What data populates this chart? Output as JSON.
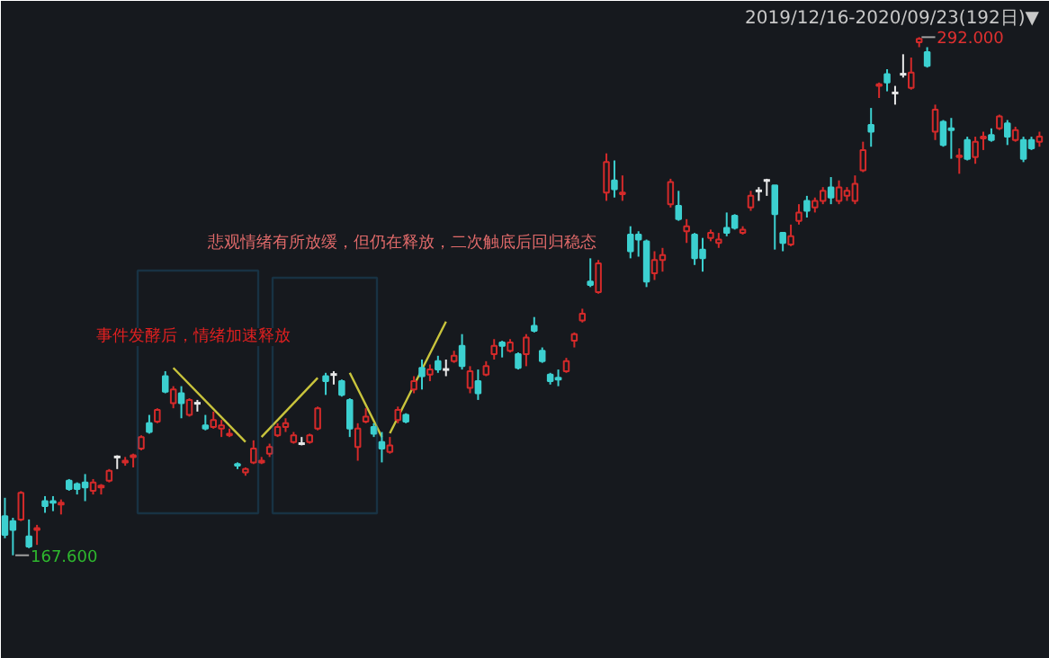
{
  "chart_data": {
    "type": "candlestick",
    "title": "2019/12/16-2020/09/23(192日)▼",
    "annotations": [
      "悲观情绪有所放缓，但仍在释放，二次触底后回归稳态",
      "事件发酵后，情绪加速释放",
      "292.000",
      "167.600"
    ],
    "categories": [
      null,
      null,
      null,
      null,
      null,
      null,
      null,
      null,
      null,
      null,
      null,
      null,
      null,
      null,
      null,
      null,
      null,
      null,
      null,
      null,
      null,
      null,
      null,
      null,
      null,
      null,
      null,
      null,
      null,
      null,
      null,
      null,
      null,
      null,
      null,
      null,
      null,
      null,
      null,
      null,
      null,
      null,
      null,
      null,
      null,
      null,
      null,
      null,
      null,
      null,
      null,
      null,
      null,
      null,
      null,
      null,
      null,
      null,
      null,
      null,
      null,
      null,
      null,
      null,
      null,
      null,
      null,
      null,
      null,
      null,
      null,
      null,
      null,
      null,
      null,
      null,
      null,
      null,
      null,
      null,
      null,
      null,
      null,
      null,
      null,
      null,
      null,
      null,
      null,
      null,
      null,
      null,
      null,
      null,
      null,
      null,
      null,
      null,
      null,
      null,
      null,
      null,
      null,
      null,
      null,
      null,
      null,
      null,
      null,
      null,
      null,
      null,
      null,
      null,
      null,
      null,
      null,
      null,
      null,
      null,
      null,
      null,
      null,
      null,
      null,
      null,
      null,
      null,
      null,
      null
    ],
    "ohlc": [
      [
        177.0,
        181.4,
        171.7,
        172.5
      ],
      [
        175.8,
        176.6,
        167.6,
        173.7
      ],
      [
        176.2,
        183.0,
        175.8,
        182.6
      ],
      [
        172.1,
        176.2,
        169.3,
        169.7
      ],
      [
        173.7,
        174.9,
        170.1,
        174.1
      ],
      [
        180.6,
        181.8,
        177.8,
        179.4
      ],
      [
        180.6,
        181.8,
        178.2,
        180.2
      ],
      [
        179.8,
        181.0,
        177.4,
        180.2
      ],
      [
        185.5,
        185.9,
        183.1,
        183.5
      ],
      [
        184.7,
        185.1,
        182.2,
        183.5
      ],
      [
        185.1,
        187.1,
        180.6,
        183.9
      ],
      [
        183.1,
        185.9,
        182.2,
        185.1
      ],
      [
        183.9,
        184.7,
        182.2,
        184.3
      ],
      [
        185.5,
        188.3,
        185.1,
        187.9
      ],
      [
        191.2,
        191.6,
        188.3,
        191.2
      ],
      [
        189.9,
        191.2,
        189.1,
        190.3
      ],
      [
        191.2,
        192.0,
        188.7,
        191.6
      ],
      [
        193.2,
        196.4,
        192.8,
        196.0
      ],
      [
        199.3,
        201.3,
        196.8,
        197.2
      ],
      [
        199.7,
        202.9,
        199.3,
        202.5
      ],
      [
        210.6,
        211.8,
        206.5,
        206.9
      ],
      [
        204.1,
        208.2,
        202.9,
        207.4
      ],
      [
        206.5,
        208.2,
        200.5,
        204.1
      ],
      [
        201.3,
        205.3,
        200.9,
        204.9
      ],
      [
        204.1,
        204.9,
        202.1,
        204.1
      ],
      [
        198.8,
        201.3,
        197.6,
        198.0
      ],
      [
        198.4,
        202.1,
        198.0,
        200.1
      ],
      [
        198.0,
        200.1,
        196.0,
        198.8
      ],
      [
        196.4,
        198.0,
        196.0,
        196.8
      ],
      [
        189.5,
        189.9,
        188.3,
        189.1
      ],
      [
        187.5,
        188.7,
        186.7,
        188.3
      ],
      [
        189.9,
        195.2,
        189.5,
        193.2
      ],
      [
        189.9,
        191.2,
        189.5,
        190.3
      ],
      [
        192.0,
        194.4,
        191.2,
        193.6
      ],
      [
        196.4,
        199.3,
        196.0,
        198.4
      ],
      [
        198.4,
        200.5,
        197.2,
        199.3
      ],
      [
        194.8,
        197.2,
        194.4,
        196.4
      ],
      [
        194.4,
        196.0,
        194.0,
        194.4
      ],
      [
        194.8,
        196.8,
        194.4,
        196.4
      ],
      [
        198.0,
        203.3,
        197.6,
        202.9
      ],
      [
        210.6,
        211.4,
        206.1,
        209.4
      ],
      [
        211.0,
        211.8,
        208.6,
        211.0
      ],
      [
        209.4,
        209.8,
        205.7,
        206.1
      ],
      [
        204.9,
        205.3,
        196.0,
        198.0
      ],
      [
        193.6,
        199.3,
        190.3,
        198.0
      ],
      [
        199.7,
        202.9,
        199.3,
        200.9
      ],
      [
        198.4,
        199.3,
        196.0,
        196.8
      ],
      [
        194.8,
        197.2,
        189.9,
        193.2
      ],
      [
        192.4,
        196.0,
        192.0,
        194.0
      ],
      [
        200.1,
        203.3,
        199.3,
        202.5
      ],
      [
        201.3,
        201.7,
        199.3,
        199.7
      ],
      [
        207.4,
        210.6,
        206.5,
        209.4
      ],
      [
        212.6,
        214.6,
        207.4,
        210.6
      ],
      [
        211.0,
        213.4,
        209.4,
        212.2
      ],
      [
        214.2,
        215.5,
        211.4,
        212.2
      ],
      [
        212.2,
        214.6,
        210.6,
        212.2
      ],
      [
        214.2,
        216.7,
        213.8,
        215.5
      ],
      [
        217.9,
        220.7,
        212.2,
        213.0
      ],
      [
        207.8,
        213.0,
        206.5,
        211.8
      ],
      [
        209.4,
        212.2,
        204.9,
        206.5
      ],
      [
        211.0,
        214.2,
        210.6,
        213.0
      ],
      [
        215.9,
        219.5,
        214.6,
        217.9
      ],
      [
        218.7,
        219.1,
        215.1,
        217.9
      ],
      [
        216.7,
        219.5,
        216.3,
        218.7
      ],
      [
        215.9,
        216.3,
        212.2,
        212.6
      ],
      [
        215.9,
        220.7,
        213.0,
        219.9
      ],
      [
        222.7,
        224.8,
        221.1,
        221.5
      ],
      [
        216.7,
        217.5,
        213.8,
        214.2
      ],
      [
        211.0,
        211.4,
        208.6,
        209.4
      ],
      [
        210.2,
        212.2,
        208.2,
        209.8
      ],
      [
        211.8,
        215.0,
        211.4,
        214.2
      ],
      [
        219.1,
        221.1,
        217.5,
        220.7
      ],
      [
        224.0,
        226.8,
        223.5,
        225.6
      ],
      [
        233.3,
        238.9,
        232.0,
        232.5
      ],
      [
        230.8,
        238.5,
        230.4,
        237.7
      ],
      [
        254.7,
        264.1,
        252.7,
        262.0
      ],
      [
        257.6,
        262.4,
        253.5,
        255.5
      ],
      [
        254.3,
        258.8,
        252.7,
        254.7
      ],
      [
        244.6,
        246.6,
        238.9,
        240.6
      ],
      [
        244.6,
        245.4,
        239.3,
        243.4
      ],
      [
        243.0,
        243.4,
        232.0,
        233.3
      ],
      [
        235.3,
        240.6,
        233.7,
        238.5
      ],
      [
        238.5,
        241.4,
        235.7,
        239.7
      ],
      [
        251.9,
        258.0,
        251.1,
        257.2
      ],
      [
        251.5,
        255.1,
        247.9,
        248.3
      ],
      [
        245.4,
        248.3,
        242.6,
        246.6
      ],
      [
        244.6,
        245.0,
        237.3,
        238.9
      ],
      [
        241.0,
        243.8,
        235.7,
        238.9
      ],
      [
        243.8,
        245.8,
        243.0,
        245.0
      ],
      [
        242.6,
        245.0,
        241.4,
        243.4
      ],
      [
        246.2,
        249.9,
        244.2,
        245.0
      ],
      [
        249.1,
        249.5,
        245.8,
        246.2
      ],
      [
        245.0,
        246.6,
        244.6,
        245.8
      ],
      [
        251.1,
        255.1,
        250.3,
        253.9
      ],
      [
        255.1,
        256.0,
        252.7,
        255.1
      ],
      [
        257.6,
        258.0,
        253.9,
        257.6
      ],
      [
        256.4,
        256.4,
        241.0,
        249.5
      ],
      [
        245.0,
        245.0,
        240.6,
        242.6
      ],
      [
        242.2,
        247.0,
        241.8,
        244.2
      ],
      [
        247.9,
        251.9,
        247.0,
        249.9
      ],
      [
        252.7,
        253.9,
        248.7,
        250.3
      ],
      [
        251.1,
        253.5,
        249.9,
        252.7
      ],
      [
        252.7,
        256.0,
        251.9,
        255.1
      ],
      [
        255.9,
        258.4,
        251.9,
        253.5
      ],
      [
        252.7,
        257.6,
        251.9,
        255.9
      ],
      [
        253.9,
        256.0,
        252.7,
        255.1
      ],
      [
        252.7,
        258.8,
        251.9,
        256.8
      ],
      [
        260.0,
        266.9,
        259.6,
        264.9
      ],
      [
        270.9,
        275.0,
        265.7,
        269.3
      ],
      [
        280.3,
        281.1,
        277.4,
        280.7
      ],
      [
        283.1,
        284.3,
        279.0,
        281.1
      ],
      [
        278.6,
        280.3,
        275.8,
        278.6
      ],
      [
        283.1,
        287.9,
        282.3,
        283.1
      ],
      [
        279.8,
        287.1,
        279.4,
        283.5
      ],
      [
        290.8,
        292.0,
        289.6,
        291.6
      ],
      [
        288.4,
        289.6,
        284.7,
        285.1
      ],
      [
        269.3,
        275.8,
        267.3,
        274.6
      ],
      [
        271.7,
        272.1,
        265.7,
        266.1
      ],
      [
        270.1,
        272.6,
        262.8,
        269.7
      ],
      [
        263.2,
        265.3,
        259.2,
        263.6
      ],
      [
        267.3,
        268.1,
        262.4,
        262.8
      ],
      [
        263.2,
        268.1,
        261.6,
        266.9
      ],
      [
        267.7,
        269.3,
        264.9,
        268.1
      ],
      [
        268.5,
        270.1,
        266.9,
        267.3
      ],
      [
        270.1,
        273.4,
        269.7,
        273.0
      ],
      [
        271.3,
        272.1,
        266.1,
        268.1
      ],
      [
        267.3,
        270.5,
        266.9,
        269.7
      ],
      [
        267.3,
        268.1,
        262.0,
        262.8
      ],
      [
        267.3,
        268.1,
        264.9,
        265.3
      ],
      [
        266.9,
        269.3,
        265.7,
        268.1
      ]
    ],
    "colors": [
      "#3cd0d0",
      "#3cd0d0",
      "#d42a2a",
      "#3cd0d0",
      "#d42a2a",
      "#3cd0d0",
      "#3cd0d0",
      "#d42a2a",
      "#3cd0d0",
      "#3cd0d0",
      "#3cd0d0",
      "#d42a2a",
      "#d42a2a",
      "#d42a2a",
      "#e8e8e8",
      "#d42a2a",
      "#d42a2a",
      "#d42a2a",
      "#3cd0d0",
      "#d42a2a",
      "#3cd0d0",
      "#d42a2a",
      "#3cd0d0",
      "#d42a2a",
      "#e8e8e8",
      "#3cd0d0",
      "#d42a2a",
      "#d42a2a",
      "#d42a2a",
      "#3cd0d0",
      "#d42a2a",
      "#d42a2a",
      "#d42a2a",
      "#d42a2a",
      "#d42a2a",
      "#d42a2a",
      "#d42a2a",
      "#e8e8e8",
      "#d42a2a",
      "#d42a2a",
      "#3cd0d0",
      "#e8e8e8",
      "#3cd0d0",
      "#3cd0d0",
      "#d42a2a",
      "#d42a2a",
      "#3cd0d0",
      "#3cd0d0",
      "#d42a2a",
      "#d42a2a",
      "#3cd0d0",
      "#d42a2a",
      "#3cd0d0",
      "#d42a2a",
      "#3cd0d0",
      "#e8e8e8",
      "#d42a2a",
      "#3cd0d0",
      "#d42a2a",
      "#3cd0d0",
      "#d42a2a",
      "#d42a2a",
      "#3cd0d0",
      "#d42a2a",
      "#3cd0d0",
      "#d42a2a",
      "#3cd0d0",
      "#3cd0d0",
      "#3cd0d0",
      "#3cd0d0",
      "#d42a2a",
      "#d42a2a",
      "#d42a2a",
      "#3cd0d0",
      "#d42a2a",
      "#d42a2a",
      "#3cd0d0",
      "#d42a2a",
      "#3cd0d0",
      "#3cd0d0",
      "#3cd0d0",
      "#d42a2a",
      "#d42a2a",
      "#d42a2a",
      "#3cd0d0",
      "#d42a2a",
      "#3cd0d0",
      "#3cd0d0",
      "#d42a2a",
      "#d42a2a",
      "#3cd0d0",
      "#3cd0d0",
      "#d42a2a",
      "#d42a2a",
      "#e8e8e8",
      "#e8e8e8",
      "#3cd0d0",
      "#3cd0d0",
      "#d42a2a",
      "#d42a2a",
      "#3cd0d0",
      "#d42a2a",
      "#d42a2a",
      "#3cd0d0",
      "#d42a2a",
      "#d42a2a",
      "#d42a2a",
      "#d42a2a",
      "#3cd0d0",
      "#d42a2a",
      "#3cd0d0",
      "#e8e8e8",
      "#e8e8e8",
      "#d42a2a",
      "#d42a2a",
      "#3cd0d0",
      "#d42a2a",
      "#3cd0d0",
      "#3cd0d0",
      "#d42a2a",
      "#3cd0d0",
      "#d42a2a",
      "#d42a2a",
      "#3cd0d0",
      "#d42a2a",
      "#3cd0d0",
      "#d42a2a",
      "#3cd0d0",
      "#3cd0d0",
      "#d42a2a"
    ],
    "series": [
      {
        "type": "line",
        "color": "#c9c43c",
        "values": [
          null,
          null,
          null,
          null,
          null,
          null,
          null,
          null,
          null,
          null,
          null,
          null,
          null,
          null,
          null,
          null,
          null,
          null,
          null,
          null,
          null,
          212.6,
          null,
          null,
          null,
          null,
          null,
          null,
          null,
          null,
          194.8,
          null,
          null,
          null,
          null,
          null,
          null,
          null,
          null,
          null,
          null,
          null,
          null,
          null,
          null,
          null,
          null,
          null,
          null,
          null,
          null,
          null,
          null,
          null,
          null,
          null,
          null,
          null,
          null,
          null,
          null,
          null,
          null,
          null,
          null,
          null,
          null,
          null,
          null,
          null,
          null,
          null,
          null,
          null,
          null,
          null,
          null,
          null,
          null,
          null,
          null,
          null,
          null,
          null,
          null,
          null,
          null,
          null,
          null,
          null,
          null,
          null,
          null,
          null,
          null,
          null,
          null,
          null,
          null,
          null,
          null,
          null,
          null,
          null,
          null,
          null,
          null,
          null,
          null,
          null,
          null,
          null,
          null,
          null,
          null,
          null,
          null,
          null,
          null,
          null,
          null,
          null,
          null,
          null,
          null,
          null,
          null,
          null,
          null,
          null
        ]
      },
      {
        "type": "line",
        "color": "#c9c43c",
        "values": [
          null,
          null,
          null,
          null,
          null,
          null,
          null,
          null,
          null,
          null,
          null,
          null,
          null,
          null,
          null,
          null,
          null,
          null,
          null,
          null,
          null,
          null,
          null,
          null,
          null,
          null,
          null,
          null,
          null,
          null,
          null,
          null,
          196.0,
          null,
          null,
          null,
          null,
          null,
          null,
          210.2,
          null,
          null,
          null,
          null,
          null,
          null,
          null,
          null,
          null,
          null,
          null,
          null,
          null,
          null,
          null,
          null,
          null,
          null,
          null,
          null,
          null,
          null,
          null,
          null,
          null,
          null,
          null,
          null,
          null,
          null,
          null,
          null,
          null,
          null,
          null,
          null,
          null,
          null,
          null,
          null,
          null,
          null,
          null,
          null,
          null,
          null,
          null,
          null,
          null,
          null,
          null,
          null,
          null,
          null,
          null,
          null,
          null,
          null,
          null,
          null,
          null,
          null,
          null,
          null,
          null,
          null,
          null,
          null,
          null,
          null,
          null,
          null,
          null,
          null,
          null,
          null,
          null,
          null,
          null,
          null,
          null,
          null,
          null,
          null,
          null,
          null,
          null,
          null,
          null,
          null
        ]
      },
      {
        "type": "line",
        "color": "#c9c43c",
        "values": [
          null,
          null,
          null,
          null,
          null,
          null,
          null,
          null,
          null,
          null,
          null,
          null,
          null,
          null,
          null,
          null,
          null,
          null,
          null,
          null,
          null,
          null,
          null,
          null,
          null,
          null,
          null,
          null,
          null,
          null,
          null,
          null,
          null,
          null,
          null,
          null,
          null,
          null,
          null,
          null,
          null,
          null,
          null,
          211.4,
          null,
          null,
          null,
          196.0,
          null,
          null,
          null,
          null,
          null,
          null,
          null,
          null,
          null,
          null,
          null,
          null,
          null,
          null,
          null,
          null,
          null,
          null,
          null,
          null,
          null,
          null,
          null,
          null,
          null,
          null,
          null,
          null,
          null,
          null,
          null,
          null,
          null,
          null,
          null,
          null,
          null,
          null,
          null,
          null,
          null,
          null,
          null,
          null,
          null,
          null,
          null,
          null,
          null,
          null,
          null,
          null,
          null,
          null,
          null,
          null,
          null,
          null,
          null,
          null,
          null,
          null,
          null,
          null,
          null,
          null,
          null,
          null,
          null,
          null,
          null,
          null,
          null,
          null,
          null,
          null,
          null,
          null,
          null,
          null,
          null,
          null
        ]
      },
      {
        "type": "line",
        "color": "#c9c43c",
        "values": [
          null,
          null,
          null,
          null,
          null,
          null,
          null,
          null,
          null,
          null,
          null,
          null,
          null,
          null,
          null,
          null,
          null,
          null,
          null,
          null,
          null,
          null,
          null,
          null,
          null,
          null,
          null,
          null,
          null,
          null,
          null,
          null,
          null,
          null,
          null,
          null,
          null,
          null,
          null,
          null,
          null,
          null,
          null,
          null,
          null,
          null,
          null,
          null,
          196.9,
          null,
          null,
          null,
          null,
          null,
          null,
          223.7,
          null,
          null,
          null,
          null,
          null,
          null,
          null,
          null,
          null,
          null,
          null,
          null,
          null,
          null,
          null,
          null,
          null,
          null,
          null,
          null,
          null,
          null,
          null,
          null,
          null,
          null,
          null,
          null,
          null,
          null,
          null,
          null,
          null,
          null,
          null,
          null,
          null,
          null,
          null,
          null,
          null,
          null,
          null,
          null,
          null,
          null,
          null,
          null,
          null,
          null,
          null,
          null,
          null,
          null,
          null,
          null,
          null,
          null,
          null,
          null,
          null,
          null,
          null,
          null,
          null,
          null,
          null,
          null,
          null,
          null,
          null,
          null,
          null,
          null
        ]
      }
    ]
  }
}
